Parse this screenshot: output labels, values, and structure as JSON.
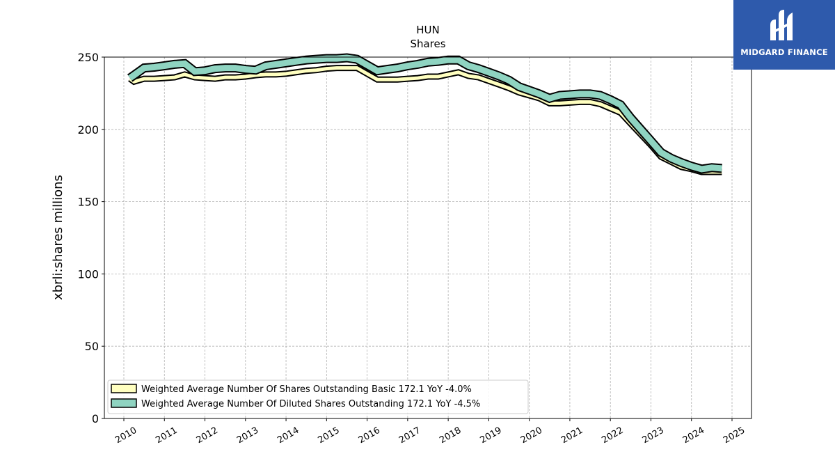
{
  "logo": {
    "text": "MIDGARD FINANCE",
    "bg_color": "#2e5aac"
  },
  "chart_data": {
    "type": "area",
    "title": "HUN",
    "subtitle": "Shares",
    "ylabel": "xbrli:shares millions",
    "xlabel": "",
    "ylim": [
      0,
      250
    ],
    "xlim": [
      2009.5,
      2025.5
    ],
    "yticks": [
      0,
      50,
      100,
      150,
      200,
      250
    ],
    "xticks": [
      "2010",
      "2011",
      "2012",
      "2013",
      "2014",
      "2015",
      "2016",
      "2017",
      "2018",
      "2019",
      "2020",
      "2021",
      "2022",
      "2023",
      "2024",
      "2025"
    ],
    "grid": true,
    "legend_position": "lower-left",
    "x": [
      2010.15,
      2010.25,
      2010.5,
      2010.75,
      2011.0,
      2011.25,
      2011.5,
      2011.75,
      2012.0,
      2012.25,
      2012.5,
      2012.75,
      2013.0,
      2013.25,
      2013.5,
      2013.75,
      2014.0,
      2014.25,
      2014.5,
      2014.75,
      2015.0,
      2015.25,
      2015.5,
      2015.75,
      2016.0,
      2016.25,
      2016.5,
      2016.75,
      2017.0,
      2017.25,
      2017.5,
      2017.75,
      2018.0,
      2018.25,
      2018.5,
      2018.75,
      2019.0,
      2019.25,
      2019.5,
      2019.75,
      2020.0,
      2020.25,
      2020.5,
      2020.75,
      2021.0,
      2021.25,
      2021.5,
      2021.75,
      2022.0,
      2022.25,
      2022.5,
      2022.75,
      2023.0,
      2023.25,
      2023.5,
      2023.75,
      2024.0,
      2024.25,
      2024.5,
      2024.75
    ],
    "series": [
      {
        "name": "Weighted Average Number Of Shares Outstanding Basic",
        "legend_label": "Weighted Average Number Of Shares Outstanding Basic  172.1 YoY -4.0%",
        "color": "#ffffc0",
        "values": [
          235,
          233,
          235,
          235,
          235.5,
          236,
          238,
          236,
          235.5,
          235,
          236,
          236,
          236.5,
          237.5,
          238,
          238,
          238.5,
          239.5,
          240.5,
          241,
          242,
          242.5,
          242.5,
          242.5,
          238.5,
          234.5,
          234.5,
          234.5,
          235,
          235.5,
          236.5,
          236.5,
          238,
          239.5,
          237,
          236,
          233.5,
          231,
          228.5,
          225.5,
          223.5,
          221.5,
          218,
          218,
          218.5,
          219,
          219,
          217.5,
          214.5,
          211.5,
          204,
          196.5,
          189,
          181,
          177.5,
          174,
          172.5,
          170.5,
          170.5,
          170.5
        ]
      },
      {
        "name": "Weighted Average Number Of Diluted Shares Outstanding",
        "legend_label": "Weighted Average Number Of Diluted Shares Outstanding  172.1 YoY -4.5%",
        "color": "#8fd4c1",
        "values": [
          235.5,
          237.5,
          242.5,
          243,
          244,
          245,
          245.5,
          240,
          240.5,
          242,
          242.5,
          242.5,
          241.5,
          241,
          244,
          245,
          246,
          247,
          248,
          248.5,
          249,
          249,
          249.5,
          248.5,
          244.5,
          240.5,
          241.5,
          242.5,
          244,
          245,
          246.5,
          247,
          248,
          248,
          244,
          242,
          239.5,
          237,
          234,
          229.5,
          227,
          224.5,
          221.5,
          223.5,
          224,
          224.5,
          224.5,
          223.5,
          220.5,
          217,
          208,
          200,
          192,
          184,
          180,
          177,
          174.5,
          172.5,
          173.5,
          173
        ]
      }
    ]
  }
}
